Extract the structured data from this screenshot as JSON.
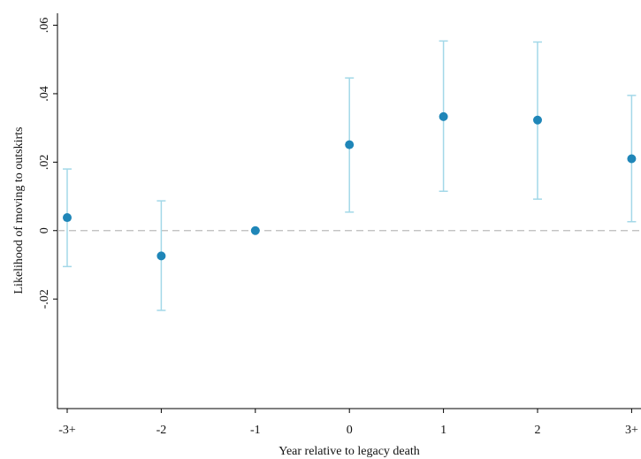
{
  "chart_data": {
    "type": "errorbar",
    "ylabel": "Likelihood of moving to outskirts",
    "xlabel": "Year relative to legacy death",
    "categories": [
      "-3+",
      "-2",
      "-1",
      "0",
      "1",
      "2",
      "3+"
    ],
    "series": [
      {
        "color": "#1f86b8",
        "ci_color": "#a3d8e8",
        "values": [
          0.0038,
          -0.0074,
          0,
          0.0251,
          0.0333,
          0.0323,
          0.021
        ],
        "lower": [
          -0.0105,
          -0.0233,
          null,
          0.0054,
          0.0115,
          0.0092,
          0.0026
        ],
        "upper": [
          0.018,
          0.0087,
          null,
          0.0446,
          0.0554,
          0.0551,
          0.0395
        ]
      }
    ],
    "ylim": [
      -0.052,
      0.0635
    ],
    "yticks": [
      {
        "value": -0.02,
        "label": "-.02"
      },
      0,
      {
        "value": 0.02,
        "label": ".02"
      },
      {
        "value": 0.04,
        "label": ".04"
      },
      {
        "value": 0.06,
        "label": ".06"
      }
    ],
    "hline": 0
  }
}
